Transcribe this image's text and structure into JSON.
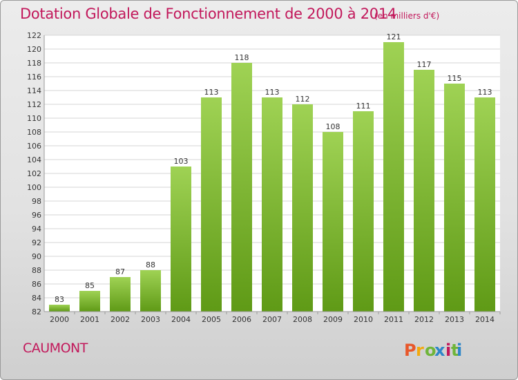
{
  "header": {
    "title": "Dotation Globale de Fonctionnement de 2000 à 2014",
    "unit_note": "(en milliers d'€)"
  },
  "footer": {
    "commune": "CAUMONT",
    "logo_text": "Proxiti"
  },
  "colors": {
    "title": "#c2185b",
    "bar_light": "#9fd254",
    "bar_dark": "#5f9a16",
    "logo_letters": [
      "#e8572a",
      "#f2a90f",
      "#6fb53a",
      "#2e86c9",
      "#c2185b",
      "#6fb53a",
      "#2e86c9"
    ]
  },
  "chart_data": {
    "type": "bar",
    "title": "Dotation Globale de Fonctionnement de 2000 à 2014",
    "subtitle": "(en milliers d'€)",
    "xlabel": "",
    "ylabel": "",
    "categories": [
      "2000",
      "2001",
      "2002",
      "2003",
      "2004",
      "2005",
      "2006",
      "2007",
      "2008",
      "2009",
      "2010",
      "2011",
      "2012",
      "2013",
      "2014"
    ],
    "values": [
      83,
      85,
      87,
      88,
      103,
      113,
      118,
      113,
      112,
      108,
      111,
      121,
      117,
      115,
      113
    ],
    "ylim": [
      82,
      122
    ],
    "yticks": [
      82,
      84,
      86,
      88,
      90,
      92,
      94,
      96,
      98,
      100,
      102,
      104,
      106,
      108,
      110,
      112,
      114,
      116,
      118,
      120,
      122
    ],
    "grid": true,
    "legend": "none"
  }
}
